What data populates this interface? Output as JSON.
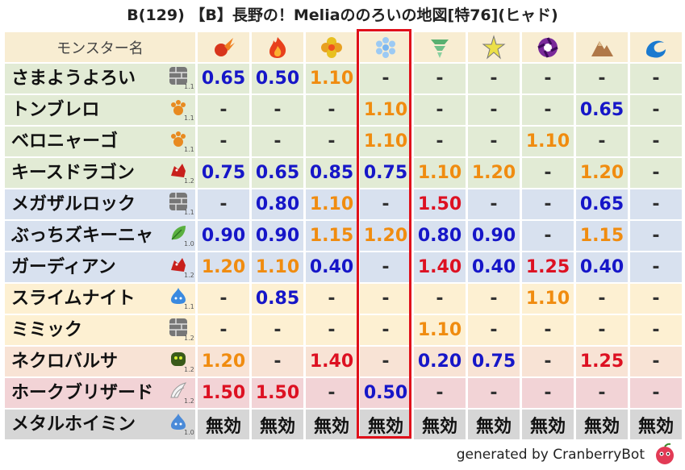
{
  "title": "B(129) 【B】長野の！Meliaののろいの地図[特76](ヒャド)",
  "header": {
    "name_label": "モンスター名",
    "resist_icons": [
      "fire-ball-icon",
      "flame-icon",
      "explosion-icon",
      "ice-icon",
      "wind-icon",
      "lightning-icon",
      "dark-icon",
      "earth-icon",
      "water-icon"
    ]
  },
  "rows": [
    {
      "name": "さまようよろい",
      "icon": "brick-wall-icon",
      "level": "1.1",
      "bg": "green",
      "values": [
        "0.65",
        "0.50",
        "1.10",
        "-",
        "-",
        "-",
        "-",
        "-",
        "-"
      ],
      "colors": [
        "blue",
        "blue",
        "orange",
        "dash",
        "dash",
        "dash",
        "dash",
        "dash",
        "dash"
      ]
    },
    {
      "name": "トンブレロ",
      "icon": "paw-icon",
      "level": "1.1",
      "bg": "green",
      "values": [
        "-",
        "-",
        "-",
        "1.10",
        "-",
        "-",
        "-",
        "0.65",
        "-"
      ],
      "colors": [
        "dash",
        "dash",
        "dash",
        "orange",
        "dash",
        "dash",
        "dash",
        "blue",
        "dash"
      ]
    },
    {
      "name": "ベロニャーゴ",
      "icon": "paw-icon",
      "level": "1.1",
      "bg": "green",
      "values": [
        "-",
        "-",
        "-",
        "1.10",
        "-",
        "-",
        "1.10",
        "-",
        "-"
      ],
      "colors": [
        "dash",
        "dash",
        "dash",
        "orange",
        "dash",
        "dash",
        "orange",
        "dash",
        "dash"
      ]
    },
    {
      "name": "キースドラゴン",
      "icon": "dragon-icon",
      "level": "1.2",
      "bg": "green",
      "values": [
        "0.75",
        "0.65",
        "0.85",
        "0.75",
        "1.10",
        "1.20",
        "-",
        "1.20",
        "-"
      ],
      "colors": [
        "blue",
        "blue",
        "blue",
        "blue",
        "orange",
        "orange",
        "dash",
        "orange",
        "dash"
      ]
    },
    {
      "name": "メガザルロック",
      "icon": "brick-wall-icon",
      "level": "1.1",
      "bg": "blue",
      "values": [
        "-",
        "0.80",
        "1.10",
        "-",
        "1.50",
        "-",
        "-",
        "0.65",
        "-"
      ],
      "colors": [
        "dash",
        "blue",
        "orange",
        "dash",
        "red",
        "dash",
        "dash",
        "blue",
        "dash"
      ]
    },
    {
      "name": "ぶっちズキーニャ",
      "icon": "leaf-icon",
      "level": "1.0",
      "bg": "blue",
      "values": [
        "0.90",
        "0.90",
        "1.15",
        "1.20",
        "0.80",
        "0.90",
        "-",
        "1.15",
        "-"
      ],
      "colors": [
        "blue",
        "blue",
        "orange",
        "orange",
        "blue",
        "blue",
        "dash",
        "orange",
        "dash"
      ]
    },
    {
      "name": "ガーディアン",
      "icon": "dragon-icon",
      "level": "1.2",
      "bg": "blue",
      "values": [
        "1.20",
        "1.10",
        "0.40",
        "-",
        "1.40",
        "0.40",
        "1.25",
        "0.40",
        "-"
      ],
      "colors": [
        "orange",
        "orange",
        "blue",
        "dash",
        "red",
        "blue",
        "red",
        "blue",
        "dash"
      ]
    },
    {
      "name": "スライムナイト",
      "icon": "slime-icon",
      "level": "1.1",
      "bg": "yellow",
      "values": [
        "-",
        "0.85",
        "-",
        "-",
        "-",
        "-",
        "1.10",
        "-",
        "-"
      ],
      "colors": [
        "dash",
        "blue",
        "dash",
        "dash",
        "dash",
        "dash",
        "orange",
        "dash",
        "dash"
      ]
    },
    {
      "name": "ミミック",
      "icon": "brick-wall-icon",
      "level": "1.2",
      "bg": "yellow",
      "values": [
        "-",
        "-",
        "-",
        "-",
        "1.10",
        "-",
        "-",
        "-",
        "-"
      ],
      "colors": [
        "dash",
        "dash",
        "dash",
        "dash",
        "orange",
        "dash",
        "dash",
        "dash",
        "dash"
      ]
    },
    {
      "name": "ネクロバルサ",
      "icon": "zombie-icon",
      "level": "1.2",
      "bg": "peach",
      "values": [
        "1.20",
        "-",
        "1.40",
        "-",
        "0.20",
        "0.75",
        "-",
        "1.25",
        "-"
      ],
      "colors": [
        "orange",
        "dash",
        "red",
        "dash",
        "blue",
        "blue",
        "dash",
        "red",
        "dash"
      ]
    },
    {
      "name": "ホークブリザード",
      "icon": "wing-icon",
      "level": "1.2",
      "bg": "pink",
      "values": [
        "1.50",
        "1.50",
        "-",
        "0.50",
        "-",
        "-",
        "-",
        "-",
        "-"
      ],
      "colors": [
        "red",
        "red",
        "dash",
        "blue",
        "dash",
        "dash",
        "dash",
        "dash",
        "dash"
      ]
    },
    {
      "name": "メタルホイミン",
      "icon": "metal-slime-icon",
      "level": "1.0",
      "bg": "gray",
      "values": [
        "無効",
        "無効",
        "無効",
        "無効",
        "無効",
        "無効",
        "無効",
        "無効",
        "無効"
      ],
      "colors": [
        "dark",
        "dark",
        "dark",
        "dark",
        "dark",
        "dark",
        "dark",
        "dark",
        "dark"
      ]
    }
  ],
  "footer": {
    "text": "generated by CranberryBot",
    "logo_icon": "cranberry-icon"
  }
}
